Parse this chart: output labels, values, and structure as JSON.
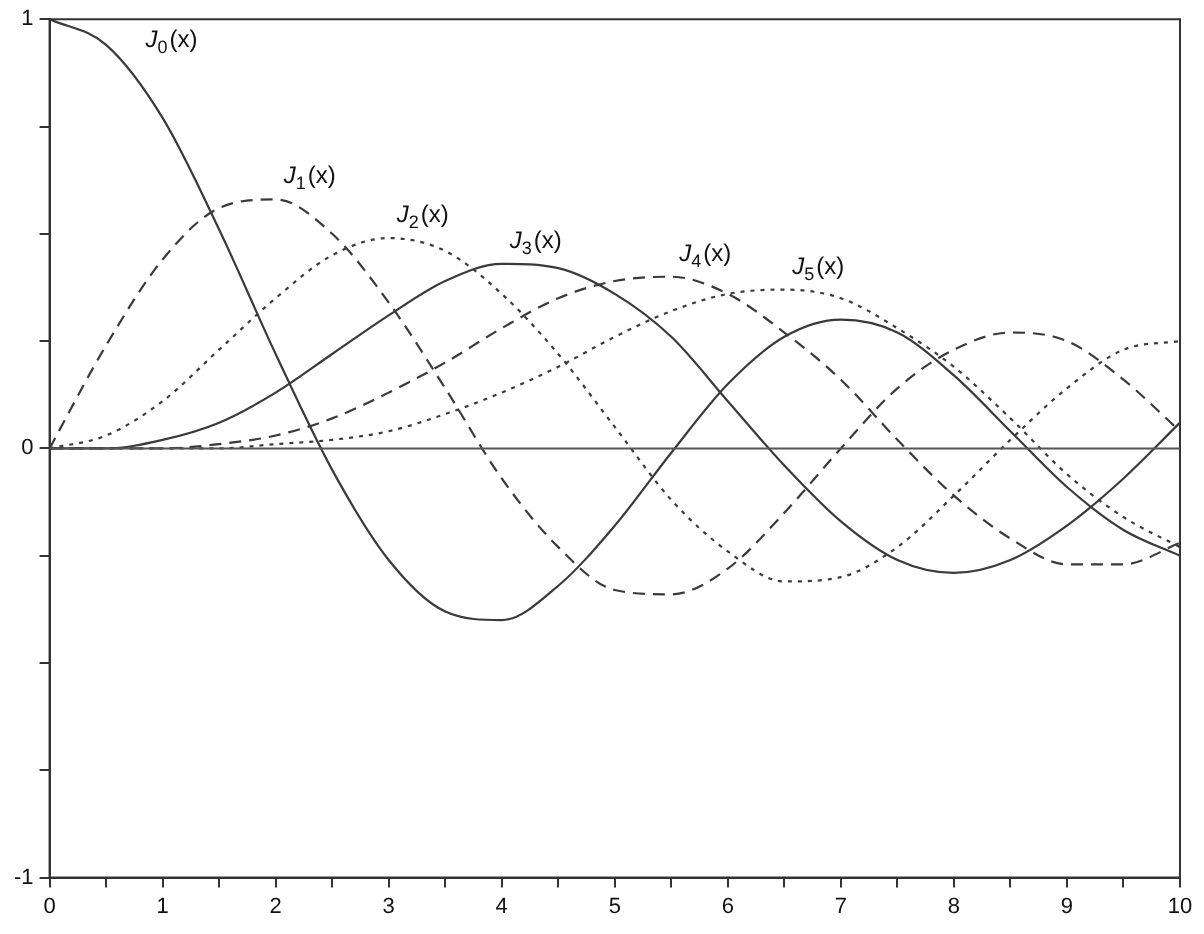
{
  "chart_data": {
    "type": "line",
    "x": [
      0,
      0.5,
      1,
      1.5,
      2,
      2.5,
      3,
      3.5,
      4,
      4.5,
      5,
      5.5,
      6,
      6.5,
      7,
      7.5,
      8,
      8.5,
      9,
      9.5,
      10
    ],
    "series": [
      {
        "name": "J$_{0}$(x)",
        "color": "#3a3a3a",
        "line_style": "solid",
        "values": [
          1,
          0.94,
          0.77,
          0.51,
          0.22,
          -0.05,
          -0.26,
          -0.38,
          -0.4,
          -0.32,
          -0.18,
          -0.01,
          0.15,
          0.26,
          0.3,
          0.27,
          0.17,
          0.04,
          -0.09,
          -0.19,
          -0.25
        ]
      },
      {
        "name": "J$_{1}$(x)",
        "color": "#3a3a3a",
        "line_style": "dashed",
        "values": [
          0,
          0.24,
          0.44,
          0.56,
          0.58,
          0.5,
          0.34,
          0.14,
          -0.07,
          -0.23,
          -0.33,
          -0.34,
          -0.28,
          -0.15,
          0,
          0.14,
          0.23,
          0.27,
          0.25,
          0.16,
          0.04
        ]
      },
      {
        "name": "J$_{2}$(x)",
        "color": "#3a3a3a",
        "line_style": "dotted",
        "values": [
          0,
          0.03,
          0.11,
          0.23,
          0.35,
          0.45,
          0.49,
          0.46,
          0.36,
          0.22,
          0.05,
          -0.12,
          -0.24,
          -0.31,
          -0.3,
          -0.23,
          -0.11,
          0.02,
          0.14,
          0.23,
          0.25
        ]
      },
      {
        "name": "J$_{3}$(x)",
        "color": "#3a3a3a",
        "line_style": "solid",
        "values": [
          0,
          0,
          0.02,
          0.06,
          0.13,
          0.22,
          0.31,
          0.39,
          0.43,
          0.42,
          0.36,
          0.26,
          0.11,
          -0.04,
          -0.17,
          -0.26,
          -0.29,
          -0.26,
          -0.18,
          -0.07,
          0.06
        ]
      },
      {
        "name": "J$_{4}$(x)",
        "color": "#3a3a3a",
        "line_style": "dashed",
        "values": [
          0,
          0,
          0,
          0.01,
          0.03,
          0.07,
          0.13,
          0.2,
          0.28,
          0.35,
          0.39,
          0.4,
          0.36,
          0.27,
          0.16,
          0.02,
          -0.11,
          -0.21,
          -0.27,
          -0.27,
          -0.22
        ]
      },
      {
        "name": "J$_{5}$(x)",
        "color": "#3a3a3a",
        "line_style": "dotted",
        "values": [
          0,
          0,
          0,
          0,
          0.01,
          0.02,
          0.04,
          0.08,
          0.13,
          0.19,
          0.26,
          0.32,
          0.36,
          0.37,
          0.35,
          0.28,
          0.19,
          0.07,
          -0.06,
          -0.16,
          -0.23
        ]
      }
    ],
    "xlim": [
      0,
      10
    ],
    "xticks": [
      0,
      {
        "value": 0.5,
        "label": null
      },
      1,
      {
        "value": 1.5,
        "label": null
      },
      2,
      {
        "value": 2.5,
        "label": null
      },
      3,
      {
        "value": 3.5,
        "label": null
      },
      4,
      {
        "value": 4.5,
        "label": null
      },
      5,
      {
        "value": 5.5,
        "label": null
      },
      6,
      {
        "value": 6.5,
        "label": null
      },
      7,
      {
        "value": 7.5,
        "label": null
      },
      8,
      {
        "value": 8.5,
        "label": null
      },
      9,
      {
        "value": 9.5,
        "label": null
      },
      10
    ],
    "ylim": [
      -1,
      1
    ],
    "yticks": [
      -1,
      {
        "value": -0.75,
        "label": null
      },
      {
        "value": -0.5,
        "label": null
      },
      {
        "value": -0.25,
        "label": null
      },
      0,
      {
        "value": 0.25,
        "label": null
      },
      {
        "value": 0.5,
        "label": null
      },
      {
        "value": 0.75,
        "label": null
      },
      1
    ],
    "ref_lines": [
      {
        "axis": "y",
        "value": 0,
        "color": "#555555"
      }
    ],
    "grid": false,
    "legend": false,
    "marker": "none"
  }
}
